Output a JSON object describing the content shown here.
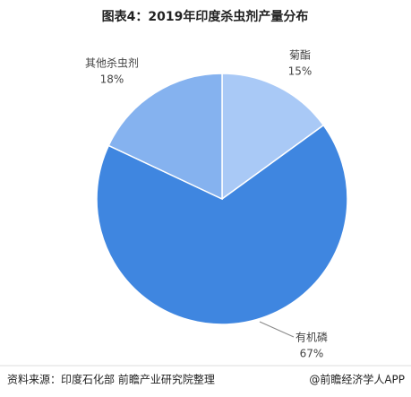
{
  "chart_data": {
    "type": "pie",
    "title": "图表4：2019年印度杀虫剂产量分布",
    "categories": [
      "菊酯",
      "有机磷",
      "其他杀虫剂"
    ],
    "values": [
      15,
      67,
      18
    ],
    "value_labels": [
      "15%",
      "67%",
      "18%"
    ],
    "colors": [
      "#a9c9f6",
      "#3f86e0",
      "#85b2ef"
    ]
  },
  "footer": {
    "source": "资料来源：印度石化部 前瞻产业研究院整理",
    "brand": "@前瞻经济学人APP"
  }
}
